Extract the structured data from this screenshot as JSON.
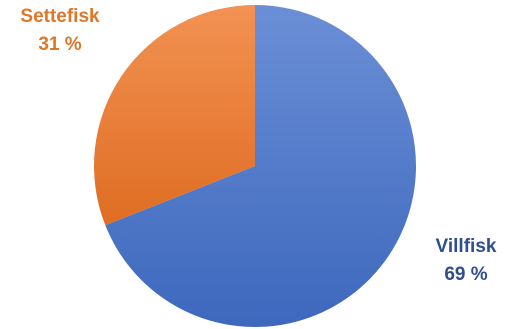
{
  "chart_data": {
    "type": "pie",
    "title": "",
    "legend": "none",
    "slices": [
      {
        "label": "Villfisk",
        "value": 69,
        "value_label": "69 %",
        "color": "#4472C4",
        "label_color": "#2F4E8C"
      },
      {
        "label": "Settefisk",
        "value": 31,
        "value_label": "31 %",
        "color": "#ED7D31",
        "label_color": "#E07628"
      }
    ],
    "start": "top",
    "direction": "clockwise",
    "gradient": true
  }
}
